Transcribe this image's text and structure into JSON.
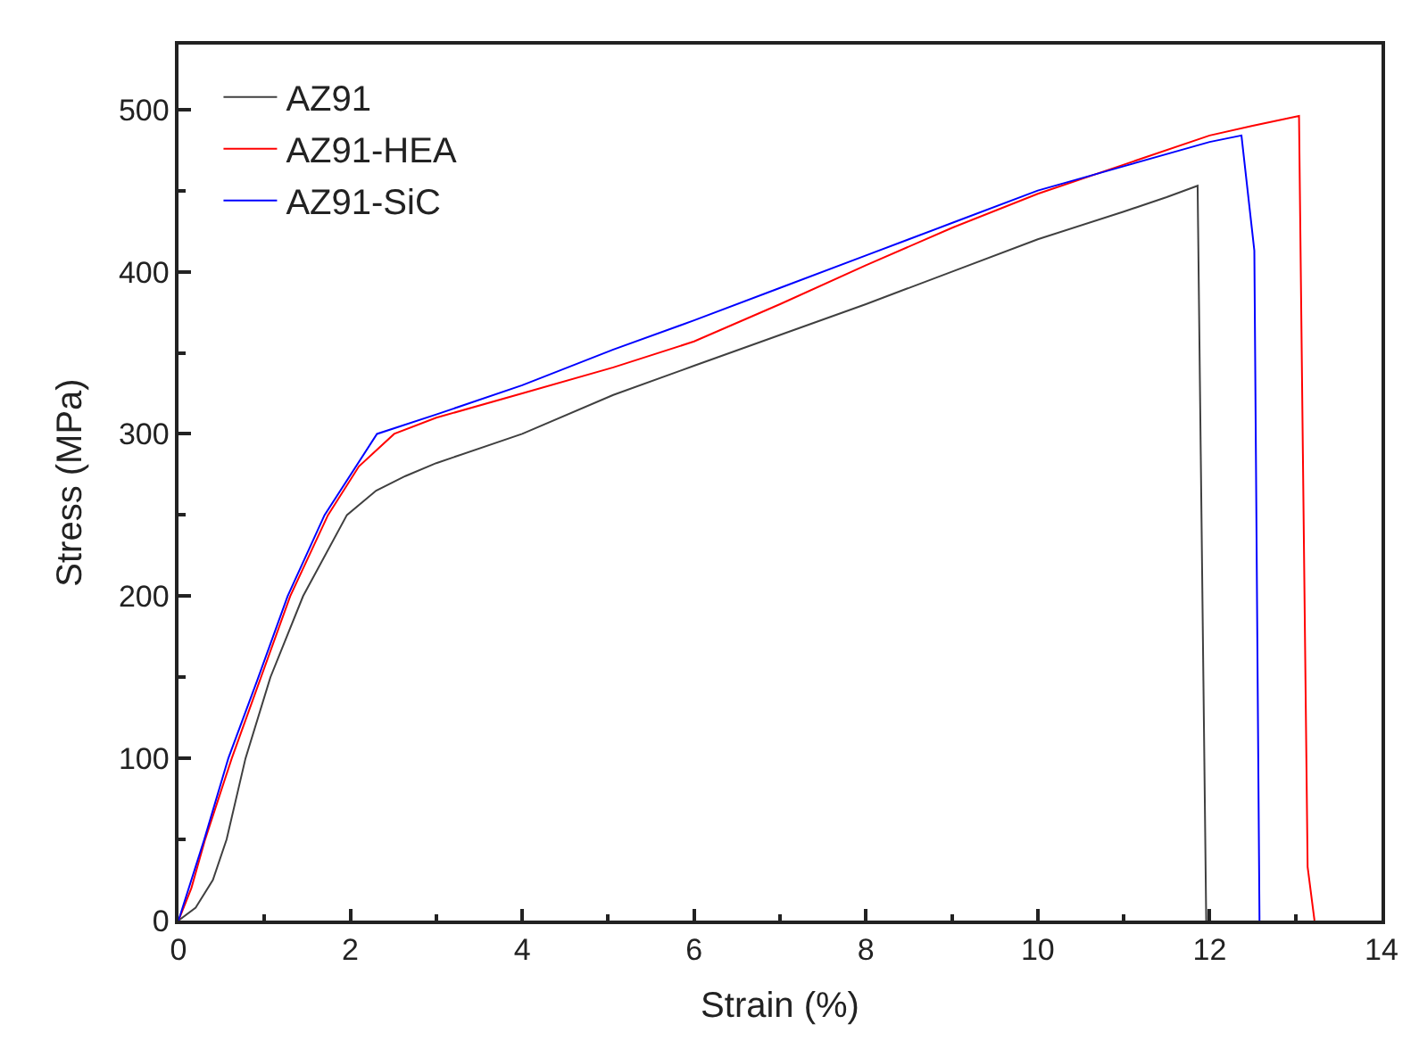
{
  "chart_data": {
    "type": "line",
    "xlabel": "Strain (%)",
    "ylabel": "Stress (MPa)",
    "series": [
      {
        "name": "AZ91",
        "color": "#404040",
        "x": [
          0,
          0.2,
          0.4,
          0.56,
          0.78,
          1.07,
          1.45,
          1.96,
          2.3,
          2.64,
          3,
          4,
          5.06,
          6,
          7,
          8,
          9,
          10,
          11,
          11.5,
          11.86,
          11.96
        ],
        "values": [
          0,
          8,
          25,
          50,
          100,
          150,
          200,
          250,
          265,
          274,
          282,
          300,
          324,
          342,
          361,
          380,
          400,
          420,
          437,
          446,
          453,
          0
        ]
      },
      {
        "name": "AZ91-HEA",
        "color": "#ff0000",
        "x": [
          0,
          0.15,
          0.31,
          0.62,
          0.96,
          1.3,
          1.74,
          2.1,
          2.51,
          3,
          4,
          5.06,
          6,
          7,
          8,
          9,
          10,
          11,
          12,
          12.5,
          13.04,
          13.14,
          13.22
        ],
        "values": [
          0,
          20,
          50,
          100,
          150,
          200,
          250,
          280,
          300,
          310,
          325,
          341,
          357,
          380,
          404,
          427,
          448,
          466,
          484,
          490,
          496,
          33,
          0
        ]
      },
      {
        "name": "AZ91-SiC",
        "color": "#0000ff",
        "x": [
          0,
          0.15,
          0.3,
          0.58,
          0.93,
          1.27,
          1.7,
          2.31,
          3,
          4,
          5.06,
          6,
          7,
          8,
          9,
          10,
          11,
          12,
          12.37,
          12.52,
          12.58
        ],
        "values": [
          0,
          25,
          50,
          100,
          150,
          200,
          250,
          300,
          312,
          330,
          352,
          370,
          390,
          410,
          430,
          450,
          465,
          480,
          484,
          413,
          0
        ]
      }
    ],
    "xlim": [
      0,
      14
    ],
    "xticks": [
      0,
      {
        "value": 1,
        "label": null
      },
      2,
      {
        "value": 3,
        "label": null
      },
      4,
      {
        "value": 5,
        "label": null
      },
      6,
      {
        "value": 7,
        "label": null
      },
      8,
      {
        "value": 9,
        "label": null
      },
      10,
      {
        "value": 11,
        "label": null
      },
      12,
      {
        "value": 13,
        "label": null
      },
      14
    ],
    "ylim": [
      0,
      540
    ],
    "yticks": [
      0,
      {
        "value": 50,
        "label": null
      },
      100,
      {
        "value": 150,
        "label": null
      },
      200,
      {
        "value": 250,
        "label": null
      },
      300,
      {
        "value": 350,
        "label": null
      },
      400,
      {
        "value": 450,
        "label": null
      },
      500
    ],
    "legend": "top left",
    "marker": "none",
    "line_style": "solid"
  }
}
